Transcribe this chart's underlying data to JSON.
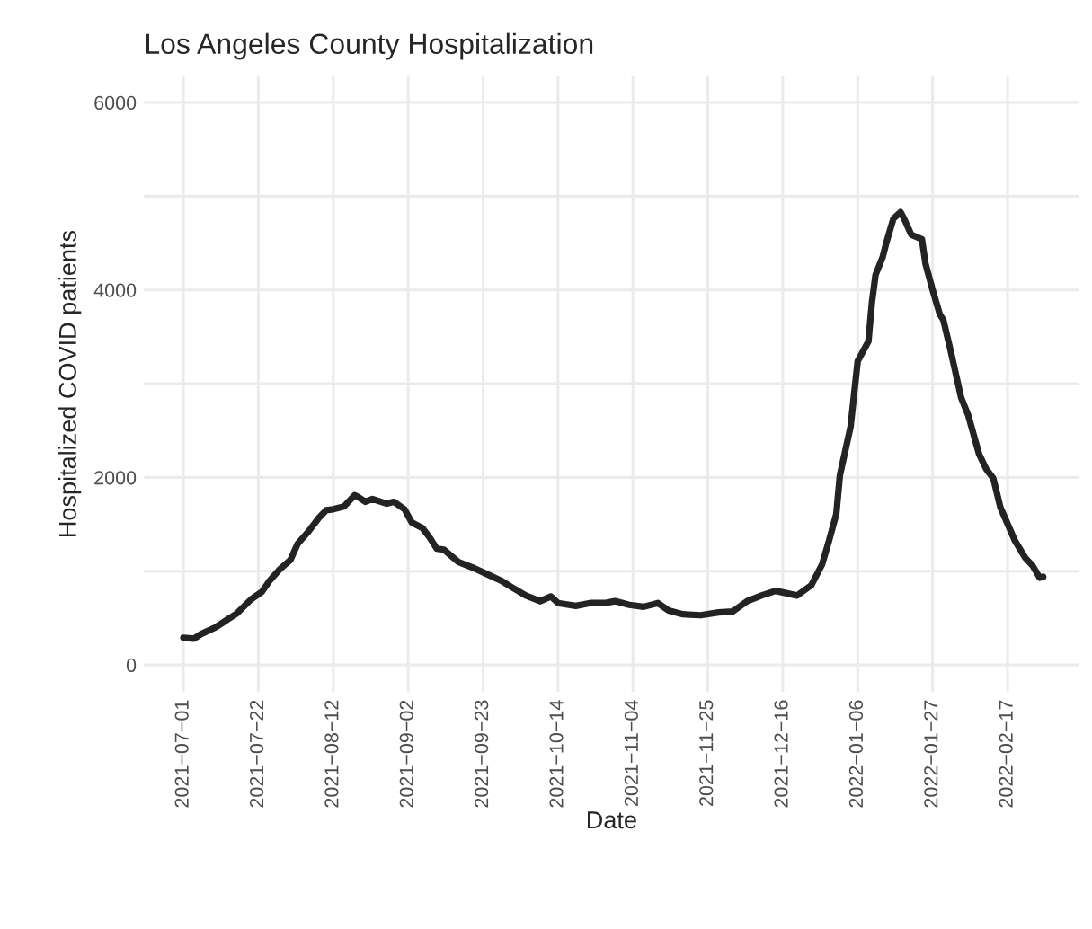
{
  "chart_data": {
    "type": "line",
    "title": "Los Angeles County Hospitalization",
    "xlabel": "Date",
    "ylabel": "Hospitalized COVID patients",
    "x": [
      "2021-07-01",
      "2021-07-04",
      "2021-07-06",
      "2021-07-10",
      "2021-07-12",
      "2021-07-16",
      "2021-07-20",
      "2021-07-23",
      "2021-07-25",
      "2021-07-28",
      "2021-07-31",
      "2021-08-02",
      "2021-08-05",
      "2021-08-08",
      "2021-08-10",
      "2021-08-12",
      "2021-08-15",
      "2021-08-18",
      "2021-08-19",
      "2021-08-21",
      "2021-08-23",
      "2021-08-27",
      "2021-08-29",
      "2021-09-01",
      "2021-09-03",
      "2021-09-06",
      "2021-09-08",
      "2021-09-10",
      "2021-09-12",
      "2021-09-16",
      "2021-09-20",
      "2021-09-24",
      "2021-09-28",
      "2021-10-01",
      "2021-10-05",
      "2021-10-09",
      "2021-10-12",
      "2021-10-14",
      "2021-10-19",
      "2021-10-23",
      "2021-10-27",
      "2021-10-30",
      "2021-11-03",
      "2021-11-07",
      "2021-11-11",
      "2021-11-14",
      "2021-11-18",
      "2021-11-23",
      "2021-11-28",
      "2021-12-02",
      "2021-12-06",
      "2021-12-10",
      "2021-12-14",
      "2021-12-20",
      "2021-12-24",
      "2021-12-27",
      "2021-12-29",
      "2021-12-31",
      "2022-01-01",
      "2022-01-04",
      "2022-01-06",
      "2022-01-09",
      "2022-01-10",
      "2022-01-11",
      "2022-01-13",
      "2022-01-14",
      "2022-01-16",
      "2022-01-18",
      "2022-01-19",
      "2022-01-21",
      "2022-01-24",
      "2022-01-25",
      "2022-01-27",
      "2022-01-29",
      "2022-01-30",
      "2022-02-01",
      "2022-02-04",
      "2022-02-06",
      "2022-02-09",
      "2022-02-11",
      "2022-02-13",
      "2022-02-15",
      "2022-02-19",
      "2022-02-22",
      "2022-02-24",
      "2022-02-26",
      "2022-02-27"
    ],
    "series": [
      {
        "color": "#232323",
        "values": [
          290,
          280,
          330,
          400,
          450,
          550,
          700,
          780,
          890,
          1020,
          1120,
          1290,
          1420,
          1570,
          1650,
          1660,
          1690,
          1810,
          1790,
          1740,
          1770,
          1720,
          1740,
          1660,
          1520,
          1460,
          1360,
          1240,
          1230,
          1100,
          1040,
          970,
          900,
          830,
          740,
          680,
          730,
          660,
          630,
          660,
          660,
          680,
          640,
          620,
          660,
          580,
          540,
          530,
          560,
          570,
          680,
          740,
          790,
          740,
          850,
          1070,
          1330,
          1610,
          2020,
          2540,
          3240,
          3450,
          3870,
          4160,
          4350,
          4500,
          4760,
          4830,
          4760,
          4590,
          4540,
          4280,
          4000,
          3740,
          3680,
          3360,
          2850,
          2660,
          2250,
          2090,
          1990,
          1680,
          1330,
          1140,
          1060,
          930,
          940
        ]
      }
    ],
    "xlim": [
      "2021-06-20",
      "2022-03-09"
    ],
    "xticks": [
      {
        "value": "2021-07-01",
        "label": "2021−07−01"
      },
      {
        "value": "2021-07-22",
        "label": "2021−07−22"
      },
      {
        "value": "2021-08-12",
        "label": "2021−08−12"
      },
      {
        "value": "2021-09-02",
        "label": "2021−09−02"
      },
      {
        "value": "2021-09-23",
        "label": "2021−09−23"
      },
      {
        "value": "2021-10-14",
        "label": "2021−10−14"
      },
      {
        "value": "2021-11-04",
        "label": "2021−11−04"
      },
      {
        "value": "2021-11-25",
        "label": "2021−11−25"
      },
      {
        "value": "2021-12-16",
        "label": "2021−12−16"
      },
      {
        "value": "2022-01-06",
        "label": "2022−01−06"
      },
      {
        "value": "2022-01-27",
        "label": "2022−01−27"
      },
      {
        "value": "2022-02-17",
        "label": "2022−02−17"
      }
    ],
    "ylim": [
      -290,
      6280
    ],
    "yticks": [
      0,
      {
        "value": 1000,
        "label": null
      },
      2000,
      {
        "value": 3000,
        "label": null
      },
      4000,
      {
        "value": 5000,
        "label": null
      },
      6000
    ],
    "grid": true,
    "line_style": "solid",
    "marker": "none"
  }
}
